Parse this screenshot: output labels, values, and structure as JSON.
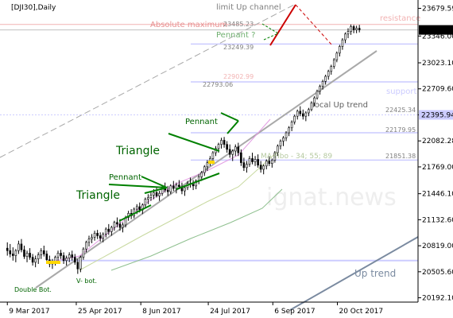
{
  "chart_data": {
    "type": "candlestick",
    "title": "[DJI30],Daily",
    "watermark": "ignat.news",
    "y_range": [
      20140,
      23780
    ],
    "y_ticks": [
      "23679.59",
      "23346.00",
      "23023.10",
      "22709.60",
      "22395.94",
      "22082.28",
      "21769.00",
      "21446.10",
      "21132.60",
      "20819.00",
      "20505.60",
      "20192.10"
    ],
    "x_ticks": [
      "9 Mar 2017",
      "25 Apr 2017",
      "8 Jun 2017",
      "24 Jul 2017",
      "6 Sep 2017",
      "20 Oct 2017"
    ],
    "x_tick_days": [
      0,
      47,
      91,
      137,
      181,
      225
    ],
    "x_range_days": [
      -5,
      280
    ],
    "current_price": "23419.67",
    "levels": {
      "absolute_maximum": {
        "label": "Absolute maximum",
        "value": "23485.23",
        "y": 23485.23
      },
      "level_23249": {
        "value": "23249.39",
        "y": 23249.39
      },
      "level_22902": {
        "value": "22902.99",
        "y": 22902.99
      },
      "level_22793": {
        "value": "22793.06",
        "y": 22793.06
      },
      "level_22425": {
        "value": "22425.34",
        "y": 22425.34
      },
      "level_22179": {
        "value": "22179.95",
        "y": 22179.95
      },
      "level_21851": {
        "value": "21851.38",
        "y": 21851.38
      },
      "support_zone": {
        "value": "22395.94",
        "y": 22395.94
      },
      "bottom_level": {
        "y": 20640
      }
    },
    "annotations": {
      "limit_up_channel": "limit Up channel",
      "resistance": "resistance",
      "support": "support",
      "local_up_trend": "local Up trend",
      "up_trend": "Up trend",
      "ma_fibo": "MA Fibo - 34; 55; 89",
      "triangle_1": "Triangle",
      "triangle_2": "Triangle",
      "pennant_1": "Pennant",
      "pennant_2": "Pennant",
      "pennant_3": "Pennant ?",
      "double_bottom": "Double Bot.",
      "v_bottom": "V- bot."
    },
    "colors": {
      "trend_gray": "#a9a9a9",
      "support_line": "#ccccff",
      "resistance_text": "#f2b3b3",
      "forecast": "#cc0000",
      "pattern_green": "#008000",
      "ma_pink": "#e39ce3",
      "ma_olive": "#c8d9a0",
      "ma_green": "#8fc08f",
      "marker_yellow": "#ffd700",
      "up_trend_blue": "#7a8aa0"
    },
    "candles": [
      [
        20790,
        20860,
        20700,
        20760
      ],
      [
        20760,
        20840,
        20680,
        20720
      ],
      [
        20720,
        20800,
        20640,
        20700
      ],
      [
        20700,
        20780,
        20620,
        20760
      ],
      [
        20760,
        20880,
        20720,
        20840
      ],
      [
        20840,
        20900,
        20740,
        20770
      ],
      [
        20770,
        20820,
        20660,
        20690
      ],
      [
        20690,
        20760,
        20620,
        20730
      ],
      [
        20730,
        20790,
        20650,
        20680
      ],
      [
        20680,
        20720,
        20580,
        20620
      ],
      [
        20620,
        20700,
        20560,
        20660
      ],
      [
        20660,
        20740,
        20600,
        20710
      ],
      [
        20710,
        20790,
        20660,
        20760
      ],
      [
        20760,
        20820,
        20690,
        20720
      ],
      [
        20720,
        20760,
        20620,
        20650
      ],
      [
        20650,
        20700,
        20560,
        20600
      ],
      [
        20600,
        20660,
        20540,
        20630
      ],
      [
        20630,
        20700,
        20580,
        20680
      ],
      [
        20680,
        20760,
        20640,
        20730
      ],
      [
        20730,
        20770,
        20660,
        20700
      ],
      [
        20700,
        20740,
        20600,
        20640
      ],
      [
        20640,
        20700,
        20580,
        20670
      ],
      [
        20670,
        20740,
        20620,
        20710
      ],
      [
        20710,
        20760,
        20640,
        20680
      ],
      [
        20680,
        20720,
        20590,
        20620
      ],
      [
        20620,
        20660,
        20480,
        20540
      ],
      [
        20540,
        20700,
        20500,
        20680
      ],
      [
        20680,
        20800,
        20650,
        20780
      ],
      [
        20780,
        20880,
        20740,
        20860
      ],
      [
        20860,
        20940,
        20810,
        20900
      ],
      [
        20900,
        20960,
        20850,
        20920
      ],
      [
        20920,
        21000,
        20880,
        20970
      ],
      [
        20970,
        21010,
        20900,
        20940
      ],
      [
        20940,
        20980,
        20870,
        20910
      ],
      [
        20910,
        20980,
        20860,
        20960
      ],
      [
        20960,
        21040,
        20920,
        21020
      ],
      [
        21020,
        21080,
        20950,
        20990
      ],
      [
        20990,
        21060,
        20940,
        21040
      ],
      [
        21040,
        21120,
        21000,
        21100
      ],
      [
        21100,
        21160,
        21040,
        21080
      ],
      [
        21080,
        21140,
        21000,
        21040
      ],
      [
        21040,
        21100,
        20980,
        21070
      ],
      [
        21070,
        21180,
        21040,
        21160
      ],
      [
        21160,
        21240,
        21120,
        21210
      ],
      [
        21210,
        21260,
        21140,
        21180
      ],
      [
        21180,
        21280,
        21150,
        21260
      ],
      [
        21260,
        21320,
        21200,
        21290
      ],
      [
        21290,
        21340,
        21220,
        21250
      ],
      [
        21250,
        21330,
        21200,
        21310
      ],
      [
        21310,
        21400,
        21280,
        21380
      ],
      [
        21380,
        21440,
        21320,
        21400
      ],
      [
        21400,
        21470,
        21360,
        21430
      ],
      [
        21430,
        21500,
        21380,
        21460
      ],
      [
        21460,
        21520,
        21400,
        21420
      ],
      [
        21420,
        21480,
        21360,
        21450
      ],
      [
        21450,
        21540,
        21420,
        21520
      ],
      [
        21520,
        21580,
        21460,
        21490
      ],
      [
        21490,
        21540,
        21420,
        21470
      ],
      [
        21470,
        21560,
        21440,
        21540
      ],
      [
        21540,
        21600,
        21480,
        21510
      ],
      [
        21510,
        21580,
        21450,
        21550
      ],
      [
        21550,
        21610,
        21500,
        21530
      ],
      [
        21530,
        21580,
        21440,
        21480
      ],
      [
        21480,
        21540,
        21420,
        21520
      ],
      [
        21520,
        21600,
        21490,
        21570
      ],
      [
        21570,
        21640,
        21520,
        21560
      ],
      [
        21560,
        21610,
        21490,
        21540
      ],
      [
        21540,
        21620,
        21500,
        21600
      ],
      [
        21600,
        21680,
        21560,
        21650
      ],
      [
        21650,
        21720,
        21600,
        21700
      ],
      [
        21700,
        21790,
        21660,
        21770
      ],
      [
        21770,
        21850,
        21720,
        21820
      ],
      [
        21820,
        21900,
        21780,
        21870
      ],
      [
        21870,
        21960,
        21840,
        21940
      ],
      [
        21940,
        22020,
        21900,
        21990
      ],
      [
        21990,
        22060,
        21940,
        22040
      ],
      [
        22040,
        22120,
        21990,
        22090
      ],
      [
        22090,
        22130,
        22000,
        22040
      ],
      [
        22040,
        22080,
        21940,
        21980
      ],
      [
        21980,
        22040,
        21880,
        21920
      ],
      [
        21920,
        21980,
        21840,
        21960
      ],
      [
        21960,
        22040,
        21900,
        22010
      ],
      [
        22010,
        22060,
        21900,
        21940
      ],
      [
        21940,
        21980,
        21780,
        21820
      ],
      [
        21820,
        21880,
        21720,
        21760
      ],
      [
        21760,
        21840,
        21700,
        21800
      ],
      [
        21800,
        21900,
        21770,
        21870
      ],
      [
        21870,
        21940,
        21800,
        21830
      ],
      [
        21830,
        21900,
        21780,
        21860
      ],
      [
        21860,
        21920,
        21760,
        21790
      ],
      [
        21790,
        21840,
        21700,
        21740
      ],
      [
        21740,
        21800,
        21680,
        21780
      ],
      [
        21780,
        21860,
        21740,
        21840
      ],
      [
        21840,
        21900,
        21780,
        21810
      ],
      [
        21810,
        21870,
        21760,
        21850
      ],
      [
        21850,
        21960,
        21820,
        21940
      ],
      [
        21940,
        22040,
        21900,
        22020
      ],
      [
        22020,
        22100,
        21980,
        22080
      ],
      [
        22080,
        22140,
        22020,
        22120
      ],
      [
        22120,
        22200,
        22080,
        22180
      ],
      [
        22180,
        22260,
        22140,
        22240
      ],
      [
        22240,
        22330,
        22200,
        22310
      ],
      [
        22310,
        22400,
        22280,
        22380
      ],
      [
        22380,
        22460,
        22340,
        22440
      ],
      [
        22440,
        22500,
        22380,
        22410
      ],
      [
        22410,
        22460,
        22340,
        22380
      ],
      [
        22380,
        22440,
        22320,
        22420
      ],
      [
        22420,
        22480,
        22380,
        22460
      ],
      [
        22460,
        22560,
        22440,
        22540
      ],
      [
        22540,
        22620,
        22500,
        22600
      ],
      [
        22600,
        22700,
        22580,
        22680
      ],
      [
        22680,
        22760,
        22640,
        22740
      ],
      [
        22740,
        22820,
        22700,
        22800
      ],
      [
        22800,
        22880,
        22760,
        22860
      ],
      [
        22860,
        22940,
        22820,
        22920
      ],
      [
        22920,
        23000,
        22880,
        22980
      ],
      [
        22980,
        23080,
        22950,
        23060
      ],
      [
        23060,
        23160,
        23030,
        23140
      ],
      [
        23140,
        23240,
        23100,
        23220
      ],
      [
        23220,
        23320,
        23180,
        23300
      ],
      [
        23300,
        23390,
        23260,
        23370
      ],
      [
        23370,
        23440,
        23320,
        23400
      ],
      [
        23400,
        23485,
        23360,
        23460
      ],
      [
        23460,
        23480,
        23380,
        23420
      ],
      [
        23420,
        23470,
        23380,
        23440
      ],
      [
        23440,
        23480,
        23390,
        23420
      ]
    ]
  }
}
